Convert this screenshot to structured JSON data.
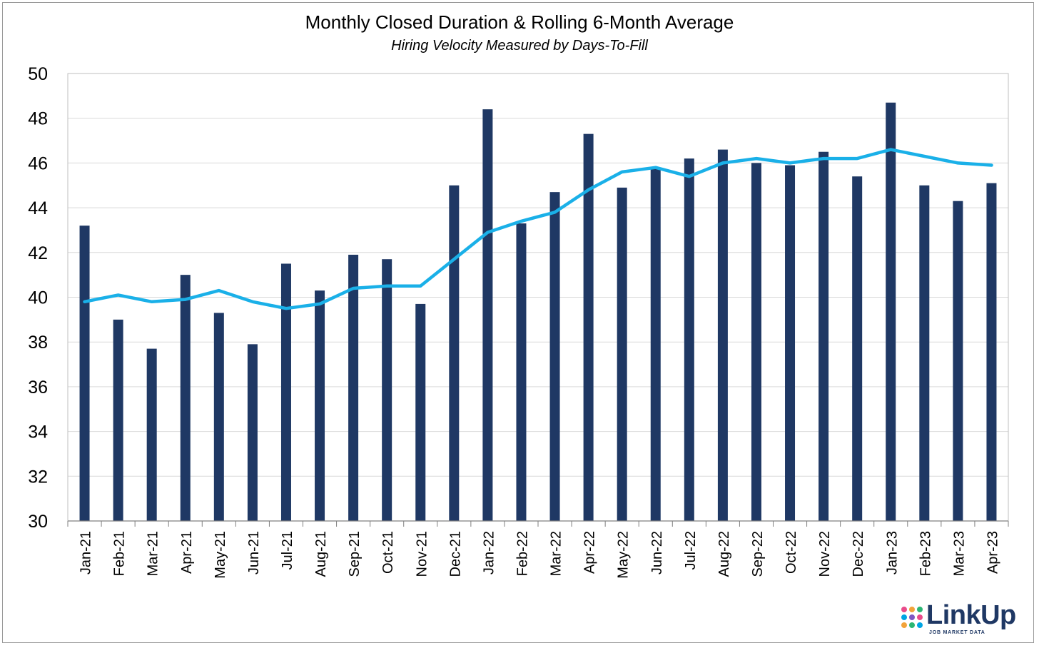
{
  "chart_data": {
    "type": "bar",
    "title": "Monthly Closed Duration & Rolling 6-Month Average",
    "subtitle": "Hiring Velocity Measured by Days-To-Fill",
    "xlabel": "",
    "ylabel": "",
    "ylim": [
      30,
      50
    ],
    "y_ticks": [
      30,
      32,
      34,
      36,
      38,
      40,
      42,
      44,
      46,
      48,
      50
    ],
    "grid": true,
    "legend": "none",
    "categories": [
      "Jan-21",
      "Feb-21",
      "Mar-21",
      "Apr-21",
      "May-21",
      "Jun-21",
      "Jul-21",
      "Aug-21",
      "Sep-21",
      "Oct-21",
      "Nov-21",
      "Dec-21",
      "Jan-22",
      "Feb-22",
      "Mar-22",
      "Apr-22",
      "May-22",
      "Jun-22",
      "Jul-22",
      "Aug-22",
      "Sep-22",
      "Oct-22",
      "Nov-22",
      "Dec-22",
      "Jan-23",
      "Feb-23",
      "Mar-23",
      "Apr-23"
    ],
    "series": [
      {
        "type": "bar",
        "color": "#1f3864",
        "values": [
          43.2,
          39.0,
          37.7,
          41.0,
          39.3,
          37.9,
          41.5,
          40.3,
          41.9,
          41.7,
          39.7,
          45.0,
          48.4,
          43.3,
          44.7,
          47.3,
          44.9,
          45.8,
          46.2,
          46.6,
          46.0,
          45.9,
          46.5,
          45.4,
          48.7,
          45.0,
          44.3,
          45.1
        ]
      },
      {
        "type": "line",
        "color": "#1ab0e8",
        "values": [
          39.8,
          40.1,
          39.8,
          39.9,
          40.3,
          39.8,
          39.5,
          39.7,
          40.4,
          40.5,
          40.5,
          41.7,
          42.9,
          43.4,
          43.8,
          44.8,
          45.6,
          45.8,
          45.4,
          46.0,
          46.2,
          46.0,
          46.2,
          46.2,
          46.6,
          46.3,
          46.0,
          45.9
        ]
      }
    ]
  },
  "logo": {
    "text": "LinkUp",
    "tagline": "JOB MARKET DATA",
    "dot_colors": [
      "#e94b8a",
      "#f2a33a",
      "#2bb673",
      "#00a5e3",
      "#7e57c2",
      "#e94b8a",
      "#f2a33a",
      "#2bb673",
      "#00a5e3"
    ]
  }
}
